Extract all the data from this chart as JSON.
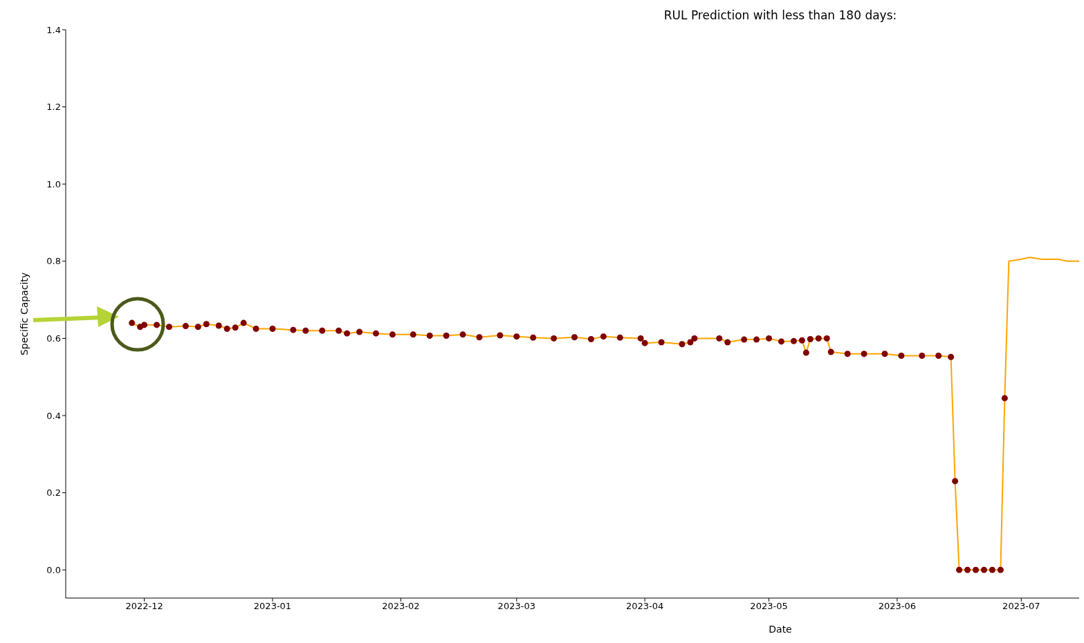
{
  "chart_data": {
    "type": "line",
    "title": "RUL Prediction with less than 180 days:",
    "xlabel": "Date",
    "ylabel": "Specific Capacity",
    "xlim": [
      "2022-11-12",
      "2023-07-15"
    ],
    "xticks": [
      "2022-12",
      "2023-01",
      "2023-02",
      "2023-03",
      "2023-04",
      "2023-05",
      "2023-06",
      "2023-07"
    ],
    "ylim": [
      -0.073,
      1.4
    ],
    "yticks": [
      {
        "value": 0,
        "label": "0.0"
      },
      0.2,
      0.4,
      0.6,
      0.8,
      {
        "value": 1,
        "label": "1.0"
      },
      1.2,
      1.4
    ],
    "grid": false,
    "series": [
      {
        "type": "scatter",
        "marker": "circle",
        "color": "#800000",
        "x": [
          "2022-11-28",
          "2022-11-30",
          "2022-12-01",
          "2022-12-04",
          "2022-12-07",
          "2022-12-11",
          "2022-12-14",
          "2022-12-16",
          "2022-12-19",
          "2022-12-21",
          "2022-12-23",
          "2022-12-25",
          "2022-12-28",
          "2023-01-01",
          "2023-01-06",
          "2023-01-09",
          "2023-01-13",
          "2023-01-17",
          "2023-01-19",
          "2023-01-22",
          "2023-01-26",
          "2023-01-30",
          "2023-02-04",
          "2023-02-08",
          "2023-02-12",
          "2023-02-16",
          "2023-02-20",
          "2023-02-25",
          "2023-03-01",
          "2023-03-05",
          "2023-03-10",
          "2023-03-15",
          "2023-03-19",
          "2023-03-22",
          "2023-03-26",
          "2023-03-31",
          "2023-04-01",
          "2023-04-05",
          "2023-04-10",
          "2023-04-12",
          "2023-04-13",
          "2023-04-19",
          "2023-04-21",
          "2023-04-25",
          "2023-04-28",
          "2023-05-01",
          "2023-05-04",
          "2023-05-07",
          "2023-05-09",
          "2023-05-10",
          "2023-05-11",
          "2023-05-13",
          "2023-05-15",
          "2023-05-16",
          "2023-05-20",
          "2023-05-24",
          "2023-05-29",
          "2023-06-02",
          "2023-06-07",
          "2023-06-11",
          "2023-06-14",
          "2023-06-15",
          "2023-06-16",
          "2023-06-18",
          "2023-06-20",
          "2023-06-22",
          "2023-06-24",
          "2023-06-26",
          "2023-06-27"
        ],
        "values": [
          0.64,
          0.63,
          0.635,
          0.635,
          0.63,
          0.632,
          0.63,
          0.637,
          0.633,
          0.625,
          0.628,
          0.64,
          0.625,
          0.625,
          0.622,
          0.62,
          0.62,
          0.62,
          0.613,
          0.617,
          0.613,
          0.61,
          0.61,
          0.607,
          0.607,
          0.61,
          0.603,
          0.608,
          0.605,
          0.602,
          0.6,
          0.603,
          0.598,
          0.605,
          0.602,
          0.6,
          0.588,
          0.59,
          0.585,
          0.59,
          0.6,
          0.6,
          0.59,
          0.597,
          0.597,
          0.6,
          0.592,
          0.593,
          0.595,
          0.563,
          0.598,
          0.6,
          0.6,
          0.565,
          0.56,
          0.56,
          0.56,
          0.555,
          0.555,
          0.555,
          0.552,
          0.23,
          0,
          0,
          0,
          0,
          0,
          0,
          0.445
        ]
      },
      {
        "type": "line",
        "marker": "none",
        "color": "#ffa500",
        "x": [
          "2022-11-28",
          "2022-11-30",
          "2022-12-01",
          "2022-12-04",
          "2022-12-07",
          "2022-12-11",
          "2022-12-14",
          "2022-12-16",
          "2022-12-19",
          "2022-12-21",
          "2022-12-23",
          "2022-12-25",
          "2022-12-28",
          "2023-01-01",
          "2023-01-06",
          "2023-01-09",
          "2023-01-13",
          "2023-01-17",
          "2023-01-19",
          "2023-01-22",
          "2023-01-26",
          "2023-01-30",
          "2023-02-04",
          "2023-02-08",
          "2023-02-12",
          "2023-02-16",
          "2023-02-20",
          "2023-02-25",
          "2023-03-01",
          "2023-03-05",
          "2023-03-10",
          "2023-03-15",
          "2023-03-19",
          "2023-03-22",
          "2023-03-26",
          "2023-03-31",
          "2023-04-01",
          "2023-04-05",
          "2023-04-10",
          "2023-04-12",
          "2023-04-13",
          "2023-04-19",
          "2023-04-21",
          "2023-04-25",
          "2023-04-28",
          "2023-05-01",
          "2023-05-04",
          "2023-05-07",
          "2023-05-09",
          "2023-05-10",
          "2023-05-11",
          "2023-05-13",
          "2023-05-15",
          "2023-05-16",
          "2023-05-20",
          "2023-05-24",
          "2023-05-29",
          "2023-06-02",
          "2023-06-07",
          "2023-06-11",
          "2023-06-14",
          "2023-06-15",
          "2023-06-16",
          "2023-06-18",
          "2023-06-20",
          "2023-06-22",
          "2023-06-24",
          "2023-06-26",
          "2023-06-27",
          "2023-06-28",
          "2023-07-01",
          "2023-07-03",
          "2023-07-06",
          "2023-07-10",
          "2023-07-12",
          "2023-07-15"
        ],
        "values": [
          0.64,
          0.63,
          0.635,
          0.635,
          0.63,
          0.632,
          0.63,
          0.637,
          0.633,
          0.625,
          0.628,
          0.64,
          0.625,
          0.625,
          0.622,
          0.62,
          0.62,
          0.62,
          0.613,
          0.617,
          0.613,
          0.61,
          0.61,
          0.607,
          0.607,
          0.61,
          0.603,
          0.608,
          0.605,
          0.602,
          0.6,
          0.603,
          0.598,
          0.605,
          0.602,
          0.6,
          0.588,
          0.59,
          0.585,
          0.59,
          0.6,
          0.6,
          0.59,
          0.597,
          0.597,
          0.6,
          0.592,
          0.593,
          0.595,
          0.563,
          0.598,
          0.6,
          0.6,
          0.565,
          0.56,
          0.56,
          0.56,
          0.555,
          0.555,
          0.555,
          0.552,
          0.23,
          0,
          0,
          0,
          0,
          0,
          0,
          0.445,
          0.8,
          0.805,
          0.81,
          0.805,
          0.805,
          0.8,
          0.8
        ]
      }
    ]
  }
}
